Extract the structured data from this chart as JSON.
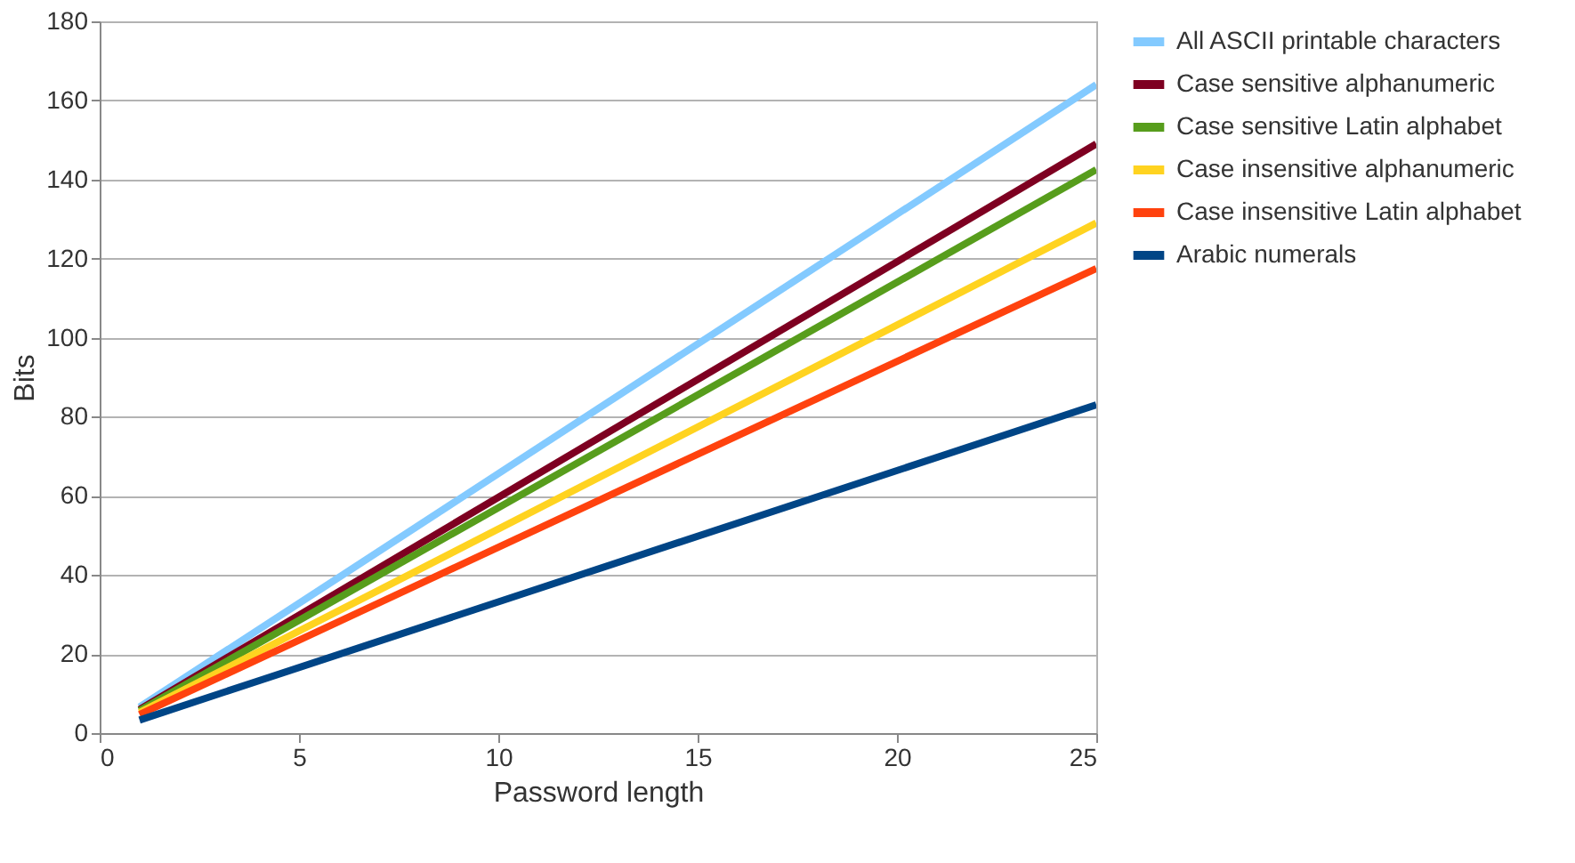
{
  "chart_data": {
    "type": "line",
    "xlabel": "Password length",
    "ylabel": "Bits",
    "x": [
      1,
      25
    ],
    "xlim": [
      0,
      25
    ],
    "xticks": [
      0,
      5,
      10,
      15,
      20,
      25
    ],
    "ylim": [
      0,
      180
    ],
    "yticks": [
      0,
      20,
      40,
      60,
      80,
      100,
      120,
      140,
      160,
      180
    ],
    "grid": "y",
    "legend": "right",
    "marker": "none",
    "line_style": "solid",
    "series": [
      {
        "name": "All ASCII printable characters",
        "color": "#83caff",
        "values": [
          6.6,
          164
        ]
      },
      {
        "name": "Case sensitive alphanumeric",
        "color": "#7e0021",
        "values": [
          6.0,
          149
        ]
      },
      {
        "name": "Case sensitive Latin alphabet",
        "color": "#579d1c",
        "values": [
          5.7,
          142.5
        ]
      },
      {
        "name": "Case insensitive alphanumeric",
        "color": "#ffd320",
        "values": [
          5.2,
          129
        ]
      },
      {
        "name": "Case insensitive Latin alphabet",
        "color": "#ff420e",
        "values": [
          4.7,
          117.5
        ]
      },
      {
        "name": "Arabic numerals",
        "color": "#004586",
        "values": [
          3.3,
          83
        ]
      }
    ]
  }
}
